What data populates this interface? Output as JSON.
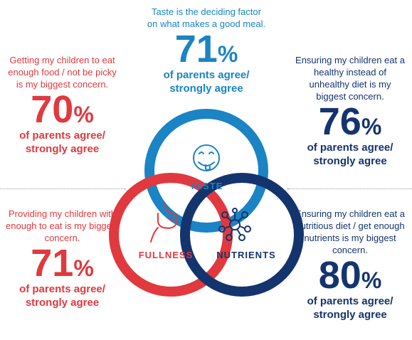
{
  "colors": {
    "taste": "#1a84c4",
    "fullness": "#e0393e",
    "nutrients": "#14346e"
  },
  "icons": {
    "taste": "smiling-face-tongue-icon",
    "fullness": "stomach-icon",
    "nutrients": "molecule-network-icon"
  },
  "venn": {
    "taste_label": "TASTE",
    "fullness_label": "FULLNESS",
    "nutrients_label": "NUTRIENTS"
  },
  "taste": {
    "description": "Taste is the deciding factor on what makes a good meal.",
    "value": "71",
    "unit": "%",
    "label": "of parents agree/ strongly agree"
  },
  "children_eating": {
    "description": "Getting my children to eat enough food / not be picky is my biggest concern.",
    "value": "70",
    "unit": "%",
    "label": "of parents agree/ strongly agree"
  },
  "healthy_diet": {
    "description": "Ensuring my children eat a healthy instead of unhealthy diet is my biggest concern.",
    "value": "76",
    "unit": "%",
    "label": "of parents agree/ strongly agree"
  },
  "providing_enough": {
    "description": "Providing my children with enough to eat is my biggest concern.",
    "value": "71",
    "unit": "%",
    "label": "of parents agree/ strongly agree"
  },
  "nutritious_diet": {
    "description": "Ensuring my children eat a nutritious diet / get enough nutrients is my biggest concern.",
    "value": "80",
    "unit": "%",
    "label": "of parents agree/ strongly agree"
  }
}
